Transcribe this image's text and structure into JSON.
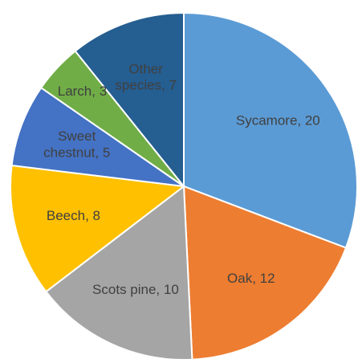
{
  "chart_data": {
    "type": "pie",
    "values": [
      20,
      12,
      10,
      8,
      5,
      3,
      7
    ],
    "value_labels": [
      "Sycamore, 20",
      "Oak, 12",
      "Scots pine, 10",
      "Beech, 8",
      "Sweet chestnut, 5",
      "Larch, 3",
      "Other species, 7"
    ],
    "colors": [
      "#5b9bd5",
      "#ed7d31",
      "#a5a5a5",
      "#ffc000",
      "#4472c4",
      "#70ad47",
      "#255e91"
    ]
  }
}
